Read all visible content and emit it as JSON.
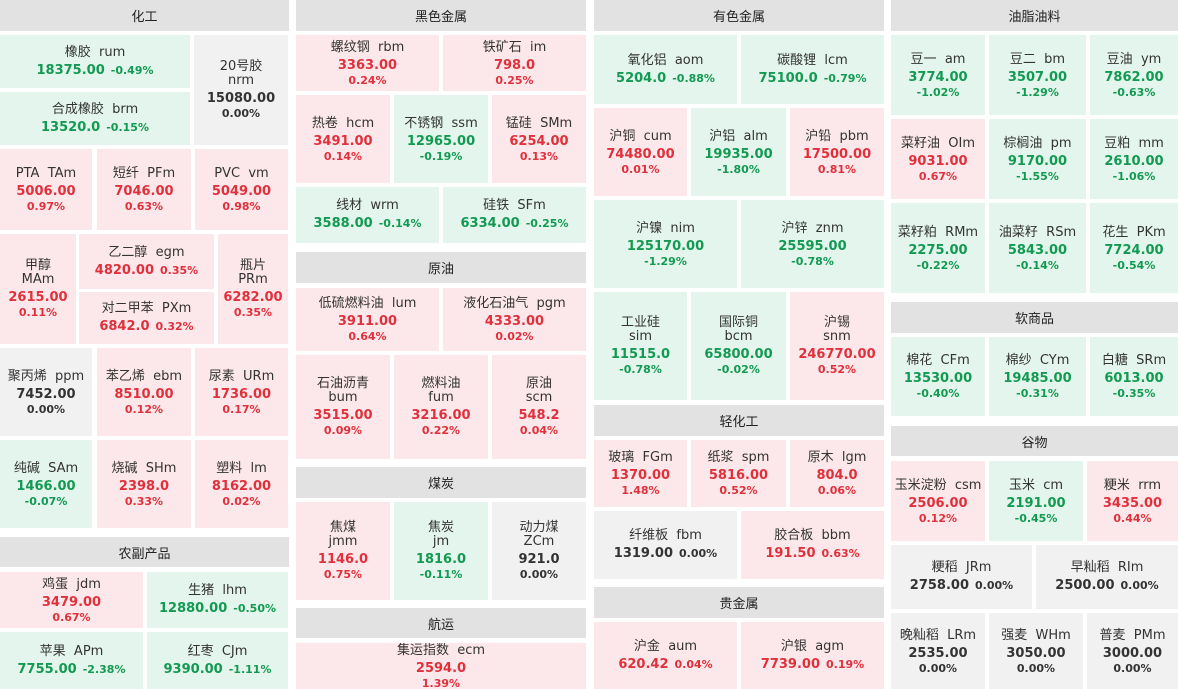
{
  "sections": [
    {
      "key": "chem",
      "title": "化工"
    },
    {
      "key": "agri",
      "title": "农副产品"
    },
    {
      "key": "ferrous",
      "title": "黑色金属"
    },
    {
      "key": "crude",
      "title": "原油"
    },
    {
      "key": "coal",
      "title": "煤炭"
    },
    {
      "key": "ship",
      "title": "航运"
    },
    {
      "key": "nonferrous",
      "title": "有色金属"
    },
    {
      "key": "light",
      "title": "轻化工"
    },
    {
      "key": "precious",
      "title": "贵金属"
    },
    {
      "key": "oils",
      "title": "油脂油料"
    },
    {
      "key": "soft",
      "title": "软商品"
    },
    {
      "key": "grain",
      "title": "谷物"
    }
  ],
  "tiles": [
    {
      "id": "rum",
      "name": "橡胶",
      "code": "rum",
      "price": "18375.00",
      "change": "-0.49%",
      "dir": "dn"
    },
    {
      "id": "brm",
      "name": "合成橡胶",
      "code": "brm",
      "price": "13520.0",
      "change": "-0.15%",
      "dir": "dn"
    },
    {
      "id": "nrm",
      "name": "20号胶",
      "code": "nrm",
      "price": "15080.00",
      "change": "0.00%",
      "dir": "fl"
    },
    {
      "id": "tam",
      "name": "PTA",
      "code": "TAm",
      "price": "5006.00",
      "change": "0.97%",
      "dir": "up"
    },
    {
      "id": "pfm",
      "name": "短纤",
      "code": "PFm",
      "price": "7046.00",
      "change": "0.63%",
      "dir": "up"
    },
    {
      "id": "vm",
      "name": "PVC",
      "code": "vm",
      "price": "5049.00",
      "change": "0.98%",
      "dir": "up"
    },
    {
      "id": "mam",
      "name": "甲醇",
      "code": "MAm",
      "price": "2615.00",
      "change": "0.11%",
      "dir": "up"
    },
    {
      "id": "egm",
      "name": "乙二醇",
      "code": "egm",
      "price": "4820.00",
      "change": "0.35%",
      "dir": "up"
    },
    {
      "id": "pxm",
      "name": "对二甲苯",
      "code": "PXm",
      "price": "6842.0",
      "change": "0.32%",
      "dir": "up"
    },
    {
      "id": "prm",
      "name": "瓶片",
      "code": "PRm",
      "price": "6282.00",
      "change": "0.35%",
      "dir": "up"
    },
    {
      "id": "ppm",
      "name": "聚丙烯",
      "code": "ppm",
      "price": "7452.00",
      "change": "0.00%",
      "dir": "fl"
    },
    {
      "id": "ebm",
      "name": "苯乙烯",
      "code": "ebm",
      "price": "8510.00",
      "change": "0.12%",
      "dir": "up"
    },
    {
      "id": "urm",
      "name": "尿素",
      "code": "URm",
      "price": "1736.00",
      "change": "0.17%",
      "dir": "up"
    },
    {
      "id": "sam",
      "name": "纯碱",
      "code": "SAm",
      "price": "1466.00",
      "change": "-0.07%",
      "dir": "dn"
    },
    {
      "id": "shm",
      "name": "烧碱",
      "code": "SHm",
      "price": "2398.0",
      "change": "0.33%",
      "dir": "up"
    },
    {
      "id": "lm",
      "name": "塑料",
      "code": "lm",
      "price": "8162.00",
      "change": "0.02%",
      "dir": "up"
    },
    {
      "id": "jdm",
      "name": "鸡蛋",
      "code": "jdm",
      "price": "3479.00",
      "change": "0.67%",
      "dir": "up"
    },
    {
      "id": "lhm",
      "name": "生猪",
      "code": "lhm",
      "price": "12880.00",
      "change": "-0.50%",
      "dir": "dn"
    },
    {
      "id": "apm",
      "name": "苹果",
      "code": "APm",
      "price": "7755.00",
      "change": "-2.38%",
      "dir": "dn"
    },
    {
      "id": "cjm",
      "name": "红枣",
      "code": "CJm",
      "price": "9390.00",
      "change": "-1.11%",
      "dir": "dn"
    },
    {
      "id": "rbm",
      "name": "螺纹钢",
      "code": "rbm",
      "price": "3363.00",
      "change": "0.24%",
      "dir": "up"
    },
    {
      "id": "im",
      "name": "铁矿石",
      "code": "im",
      "price": "798.0",
      "change": "0.25%",
      "dir": "up"
    },
    {
      "id": "hcm",
      "name": "热卷",
      "code": "hcm",
      "price": "3491.00",
      "change": "0.14%",
      "dir": "up"
    },
    {
      "id": "ssm",
      "name": "不锈钢",
      "code": "ssm",
      "price": "12965.00",
      "change": "-0.19%",
      "dir": "dn"
    },
    {
      "id": "smm",
      "name": "锰硅",
      "code": "SMm",
      "price": "6254.00",
      "change": "0.13%",
      "dir": "up"
    },
    {
      "id": "wrm",
      "name": "线材",
      "code": "wrm",
      "price": "3588.00",
      "change": "-0.14%",
      "dir": "dn"
    },
    {
      "id": "sfm",
      "name": "硅铁",
      "code": "SFm",
      "price": "6334.00",
      "change": "-0.25%",
      "dir": "dn"
    },
    {
      "id": "lum",
      "name": "低硫燃料油",
      "code": "lum",
      "price": "3911.00",
      "change": "0.64%",
      "dir": "up"
    },
    {
      "id": "pgm",
      "name": "液化石油气",
      "code": "pgm",
      "price": "4333.00",
      "change": "0.02%",
      "dir": "up"
    },
    {
      "id": "bum",
      "name": "石油沥青",
      "code": "bum",
      "price": "3515.00",
      "change": "0.09%",
      "dir": "up"
    },
    {
      "id": "fum",
      "name": "燃料油",
      "code": "fum",
      "price": "3216.00",
      "change": "0.22%",
      "dir": "up"
    },
    {
      "id": "scm",
      "name": "原油",
      "code": "scm",
      "price": "548.2",
      "change": "0.04%",
      "dir": "up"
    },
    {
      "id": "jmm",
      "name": "焦煤",
      "code": "jmm",
      "price": "1146.0",
      "change": "0.75%",
      "dir": "up"
    },
    {
      "id": "jm",
      "name": "焦炭",
      "code": "jm",
      "price": "1816.0",
      "change": "-0.11%",
      "dir": "dn"
    },
    {
      "id": "zcm",
      "name": "动力煤",
      "code": "ZCm",
      "price": "921.0",
      "change": "0.00%",
      "dir": "fl"
    },
    {
      "id": "ecm",
      "name": "集运指数",
      "code": "ecm",
      "price": "2594.0",
      "change": "1.39%",
      "dir": "up"
    },
    {
      "id": "aom",
      "name": "氧化铝",
      "code": "aom",
      "price": "5204.0",
      "change": "-0.88%",
      "dir": "dn"
    },
    {
      "id": "lcm",
      "name": "碳酸锂",
      "code": "lcm",
      "price": "75100.0",
      "change": "-0.79%",
      "dir": "dn"
    },
    {
      "id": "cum",
      "name": "沪铜",
      "code": "cum",
      "price": "74480.00",
      "change": "0.01%",
      "dir": "up"
    },
    {
      "id": "alm",
      "name": "沪铝",
      "code": "alm",
      "price": "19935.00",
      "change": "-1.80%",
      "dir": "dn"
    },
    {
      "id": "pbm",
      "name": "沪铅",
      "code": "pbm",
      "price": "17500.00",
      "change": "0.81%",
      "dir": "up"
    },
    {
      "id": "nim",
      "name": "沪镍",
      "code": "nim",
      "price": "125170.00",
      "change": "-1.29%",
      "dir": "dn"
    },
    {
      "id": "znm",
      "name": "沪锌",
      "code": "znm",
      "price": "25595.00",
      "change": "-0.78%",
      "dir": "dn"
    },
    {
      "id": "sim",
      "name": "工业硅",
      "code": "sim",
      "price": "11515.0",
      "change": "-0.78%",
      "dir": "dn"
    },
    {
      "id": "bcm",
      "name": "国际铜",
      "code": "bcm",
      "price": "65800.00",
      "change": "-0.02%",
      "dir": "dn"
    },
    {
      "id": "snm",
      "name": "沪锡",
      "code": "snm",
      "price": "246770.00",
      "change": "0.52%",
      "dir": "up"
    },
    {
      "id": "fgm",
      "name": "玻璃",
      "code": "FGm",
      "price": "1370.00",
      "change": "1.48%",
      "dir": "up"
    },
    {
      "id": "spm",
      "name": "纸浆",
      "code": "spm",
      "price": "5816.00",
      "change": "0.52%",
      "dir": "up"
    },
    {
      "id": "lgm",
      "name": "原木",
      "code": "lgm",
      "price": "804.0",
      "change": "0.06%",
      "dir": "up"
    },
    {
      "id": "fbm",
      "name": "纤维板",
      "code": "fbm",
      "price": "1319.00",
      "change": "0.00%",
      "dir": "fl"
    },
    {
      "id": "bbm",
      "name": "胶合板",
      "code": "bbm",
      "price": "191.50",
      "change": "0.63%",
      "dir": "up"
    },
    {
      "id": "aum",
      "name": "沪金",
      "code": "aum",
      "price": "620.42",
      "change": "0.04%",
      "dir": "up"
    },
    {
      "id": "agm",
      "name": "沪银",
      "code": "agm",
      "price": "7739.00",
      "change": "0.19%",
      "dir": "up"
    },
    {
      "id": "am",
      "name": "豆一",
      "code": "am",
      "price": "3774.00",
      "change": "-1.02%",
      "dir": "dn"
    },
    {
      "id": "bm",
      "name": "豆二",
      "code": "bm",
      "price": "3507.00",
      "change": "-1.29%",
      "dir": "dn"
    },
    {
      "id": "ym",
      "name": "豆油",
      "code": "ym",
      "price": "7862.00",
      "change": "-0.63%",
      "dir": "dn"
    },
    {
      "id": "oim",
      "name": "菜籽油",
      "code": "OIm",
      "price": "9031.00",
      "change": "0.67%",
      "dir": "up"
    },
    {
      "id": "pm",
      "name": "棕榈油",
      "code": "pm",
      "price": "9170.00",
      "change": "-1.55%",
      "dir": "dn"
    },
    {
      "id": "mm",
      "name": "豆粕",
      "code": "mm",
      "price": "2610.00",
      "change": "-1.06%",
      "dir": "dn"
    },
    {
      "id": "rmm",
      "name": "菜籽粕",
      "code": "RMm",
      "price": "2275.00",
      "change": "-0.22%",
      "dir": "dn"
    },
    {
      "id": "rsm",
      "name": "油菜籽",
      "code": "RSm",
      "price": "5843.00",
      "change": "-0.14%",
      "dir": "dn"
    },
    {
      "id": "pkm",
      "name": "花生",
      "code": "PKm",
      "price": "7724.00",
      "change": "-0.54%",
      "dir": "dn"
    },
    {
      "id": "cfm",
      "name": "棉花",
      "code": "CFm",
      "price": "13530.00",
      "change": "-0.40%",
      "dir": "dn"
    },
    {
      "id": "cym",
      "name": "棉纱",
      "code": "CYm",
      "price": "19485.00",
      "change": "-0.31%",
      "dir": "dn"
    },
    {
      "id": "srm",
      "name": "白糖",
      "code": "SRm",
      "price": "6013.00",
      "change": "-0.35%",
      "dir": "dn"
    },
    {
      "id": "csm",
      "name": "玉米淀粉",
      "code": "csm",
      "price": "2506.00",
      "change": "0.12%",
      "dir": "up"
    },
    {
      "id": "cm",
      "name": "玉米",
      "code": "cm",
      "price": "2191.00",
      "change": "-0.45%",
      "dir": "dn"
    },
    {
      "id": "rrm",
      "name": "粳米",
      "code": "rrm",
      "price": "3435.00",
      "change": "0.44%",
      "dir": "up"
    },
    {
      "id": "jrm",
      "name": "粳稻",
      "code": "JRm",
      "price": "2758.00",
      "change": "0.00%",
      "dir": "fl"
    },
    {
      "id": "rim",
      "name": "早籼稻",
      "code": "RIm",
      "price": "2500.00",
      "change": "0.00%",
      "dir": "fl"
    },
    {
      "id": "lrm",
      "name": "晚籼稻",
      "code": "LRm",
      "price": "2535.00",
      "change": "0.00%",
      "dir": "fl"
    },
    {
      "id": "whm",
      "name": "强麦",
      "code": "WHm",
      "price": "3050.00",
      "change": "0.00%",
      "dir": "fl"
    },
    {
      "id": "pmm",
      "name": "普麦",
      "code": "PMm",
      "price": "3000.00",
      "change": "0.00%",
      "dir": "fl"
    }
  ]
}
